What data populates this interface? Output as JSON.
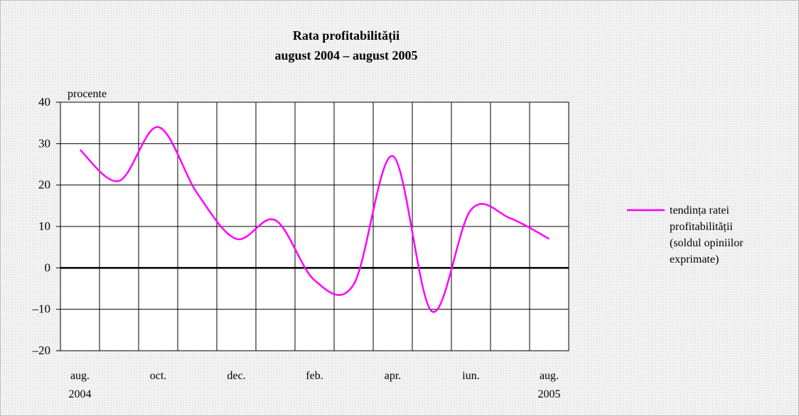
{
  "chart_data": {
    "type": "line",
    "title": "Rata profitabilității",
    "subtitle": "august 2004 – august 2005",
    "y_label": "procente",
    "categories": [
      "aug.\n2004",
      null,
      "oct.",
      null,
      "dec.",
      null,
      "feb.",
      null,
      "apr.",
      null,
      "iun.",
      null,
      "aug.\n2005"
    ],
    "series": [
      {
        "name": "tendința ratei profitabilității (soldul opiniilor exprimate)",
        "color": "#ff00ff",
        "values": [
          28.5,
          21,
          34,
          18,
          7,
          11.5,
          -3,
          -4,
          27,
          -10.5,
          14,
          12,
          7
        ]
      }
    ],
    "ylim": [
      -20,
      40
    ],
    "yticks": [
      {
        "value": -20,
        "label": "–20"
      },
      {
        "value": -10,
        "label": "–10"
      },
      0,
      10,
      20,
      30,
      40
    ],
    "grid": true,
    "legend": "right"
  }
}
